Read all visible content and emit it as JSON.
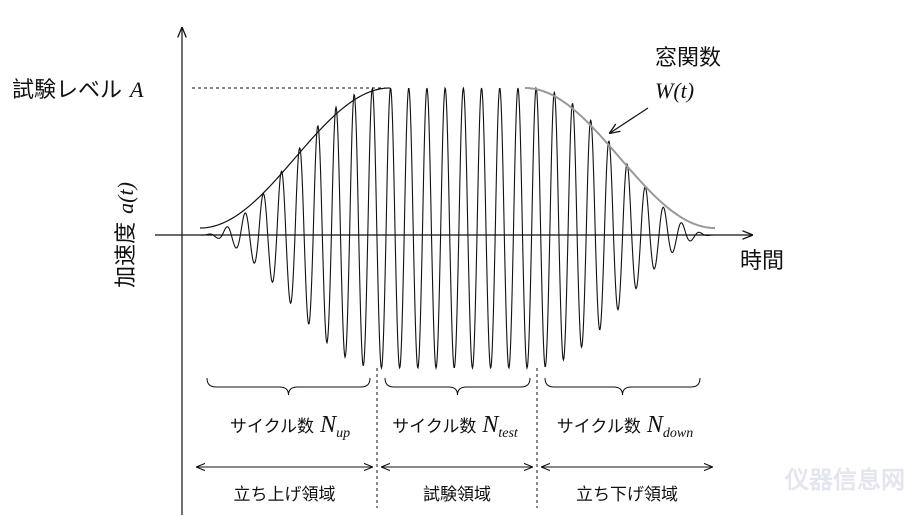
{
  "labels": {
    "test_level": "試験レベル",
    "amplitude_symbol": "A",
    "window_function": "窓関数",
    "window_symbol": "W(t)",
    "y_axis": "加速度",
    "y_axis_symbol": "a(t)",
    "x_axis": "時間"
  },
  "segments": [
    {
      "cycles_label": "サイクル数",
      "cycles_symbol": "N",
      "cycles_subscript": "up",
      "region": "立ち上げ領域"
    },
    {
      "cycles_label": "サイクル数",
      "cycles_symbol": "N",
      "cycles_subscript": "test",
      "region": "試験領域"
    },
    {
      "cycles_label": "サイクル数",
      "cycles_symbol": "N",
      "cycles_subscript": "down",
      "region": "立ち下げ領域"
    }
  ],
  "watermark": "仪器信息网"
}
